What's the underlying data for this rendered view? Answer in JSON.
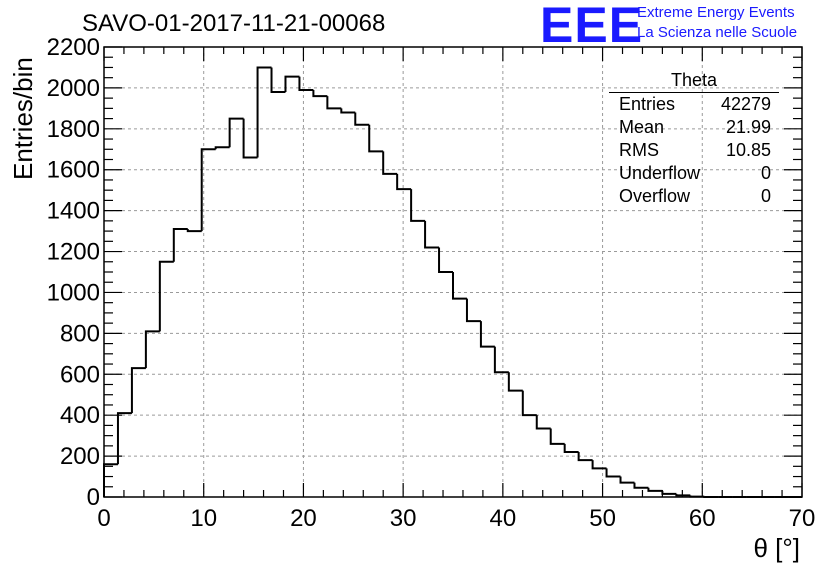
{
  "header": {
    "title": "SAVO-01-2017-11-21-00068",
    "logo_text": "EEE",
    "logo_line1": "Extreme Energy Events",
    "logo_line2": "La Scienza nelle Scuole"
  },
  "stats_box": {
    "name": "Theta",
    "rows": [
      {
        "label": "Entries",
        "value": "42279"
      },
      {
        "label": "Mean",
        "value": "21.99"
      },
      {
        "label": "RMS",
        "value": "10.85"
      },
      {
        "label": "Underflow",
        "value": "0"
      },
      {
        "label": "Overflow",
        "value": "0"
      }
    ]
  },
  "colors": {
    "line": "#000000",
    "grid": "#9a9a9a",
    "logo": "#1a1aff"
  },
  "chart_data": {
    "type": "bar",
    "style": "step-histogram",
    "title": "SAVO-01-2017-11-21-00068",
    "xlabel": "θ [°]",
    "ylabel": "Entries/bin",
    "xlim": [
      0,
      70
    ],
    "ylim": [
      0,
      2200
    ],
    "bin_width": 1.4,
    "x_ticks": [
      0,
      10,
      20,
      30,
      40,
      50,
      60,
      70
    ],
    "y_ticks": [
      0,
      200,
      400,
      600,
      800,
      1000,
      1200,
      1400,
      1600,
      1800,
      2000,
      2200
    ],
    "grid": true,
    "values": [
      160,
      410,
      630,
      810,
      1150,
      1310,
      1300,
      1700,
      1710,
      1850,
      1660,
      2100,
      1980,
      2055,
      1990,
      1960,
      1900,
      1880,
      1820,
      1690,
      1580,
      1505,
      1350,
      1220,
      1100,
      970,
      860,
      735,
      610,
      520,
      400,
      335,
      260,
      220,
      180,
      140,
      100,
      70,
      45,
      30,
      15,
      8,
      2,
      0,
      0,
      0,
      0,
      0,
      0,
      0
    ]
  }
}
